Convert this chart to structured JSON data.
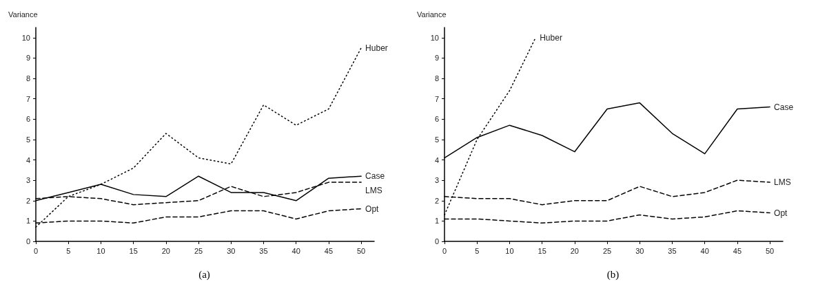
{
  "chart_data": [
    {
      "type": "line",
      "title": "(a)",
      "ylabel": "Variance",
      "x": [
        0,
        5,
        10,
        15,
        20,
        25,
        30,
        35,
        40,
        45,
        50
      ],
      "xlim": [
        0,
        52
      ],
      "xticks": [
        0,
        5,
        10,
        15,
        20,
        25,
        30,
        35,
        40,
        45,
        50
      ],
      "ylim": [
        0,
        10.5
      ],
      "yticks": [
        0,
        1,
        2,
        3,
        4,
        5,
        6,
        7,
        8,
        9,
        10
      ],
      "grid": false,
      "legend": false,
      "marker": "none",
      "series": [
        {
          "name": "Huber",
          "color": "#000000",
          "line_style": "dotted",
          "values": [
            0.7,
            2.2,
            2.8,
            3.6,
            5.3,
            4.1,
            3.8,
            6.7,
            5.7,
            6.5,
            9.5
          ]
        },
        {
          "name": "Case",
          "color": "#000000",
          "line_style": "solid",
          "values": [
            2.0,
            2.4,
            2.8,
            2.3,
            2.2,
            3.2,
            2.4,
            2.4,
            2.0,
            3.1,
            3.2
          ]
        },
        {
          "name": "LMS",
          "color": "#000000",
          "line_style": "dashed",
          "values": [
            2.1,
            2.2,
            2.1,
            1.8,
            1.9,
            2.0,
            2.7,
            2.2,
            2.4,
            2.9,
            2.9
          ]
        },
        {
          "name": "Opt",
          "color": "#000000",
          "line_style": "dashed",
          "values": [
            0.9,
            1.0,
            1.0,
            0.9,
            1.2,
            1.2,
            1.5,
            1.5,
            1.1,
            1.5,
            1.6
          ]
        }
      ]
    },
    {
      "type": "line",
      "title": "(b)",
      "ylabel": "Variance",
      "x": [
        0,
        5,
        10,
        15,
        20,
        25,
        30,
        35,
        40,
        45,
        50
      ],
      "xlim": [
        0,
        52
      ],
      "xticks": [
        0,
        5,
        10,
        15,
        20,
        25,
        30,
        35,
        40,
        45,
        50
      ],
      "ylim": [
        0,
        10.5
      ],
      "yticks": [
        0,
        1,
        2,
        3,
        4,
        5,
        6,
        7,
        8,
        9,
        10
      ],
      "grid": false,
      "legend": false,
      "marker": "none",
      "series": [
        {
          "name": "Huber",
          "color": "#000000",
          "line_style": "dotted",
          "x": [
            0,
            5,
            10,
            14
          ],
          "values": [
            1.3,
            5.0,
            7.4,
            10
          ]
        },
        {
          "name": "Case",
          "color": "#000000",
          "line_style": "solid",
          "values": [
            4.1,
            5.1,
            5.7,
            5.2,
            4.4,
            6.5,
            6.8,
            5.3,
            4.3,
            6.5,
            6.6
          ]
        },
        {
          "name": "LMS",
          "color": "#000000",
          "line_style": "dashed",
          "values": [
            2.2,
            2.1,
            2.1,
            1.8,
            2.0,
            2.0,
            2.7,
            2.2,
            2.4,
            3.0,
            2.9
          ]
        },
        {
          "name": "Opt",
          "color": "#000000",
          "line_style": "dashed",
          "values": [
            1.1,
            1.1,
            1.0,
            0.9,
            1.0,
            1.0,
            1.3,
            1.1,
            1.2,
            1.5,
            1.4
          ]
        }
      ]
    }
  ]
}
